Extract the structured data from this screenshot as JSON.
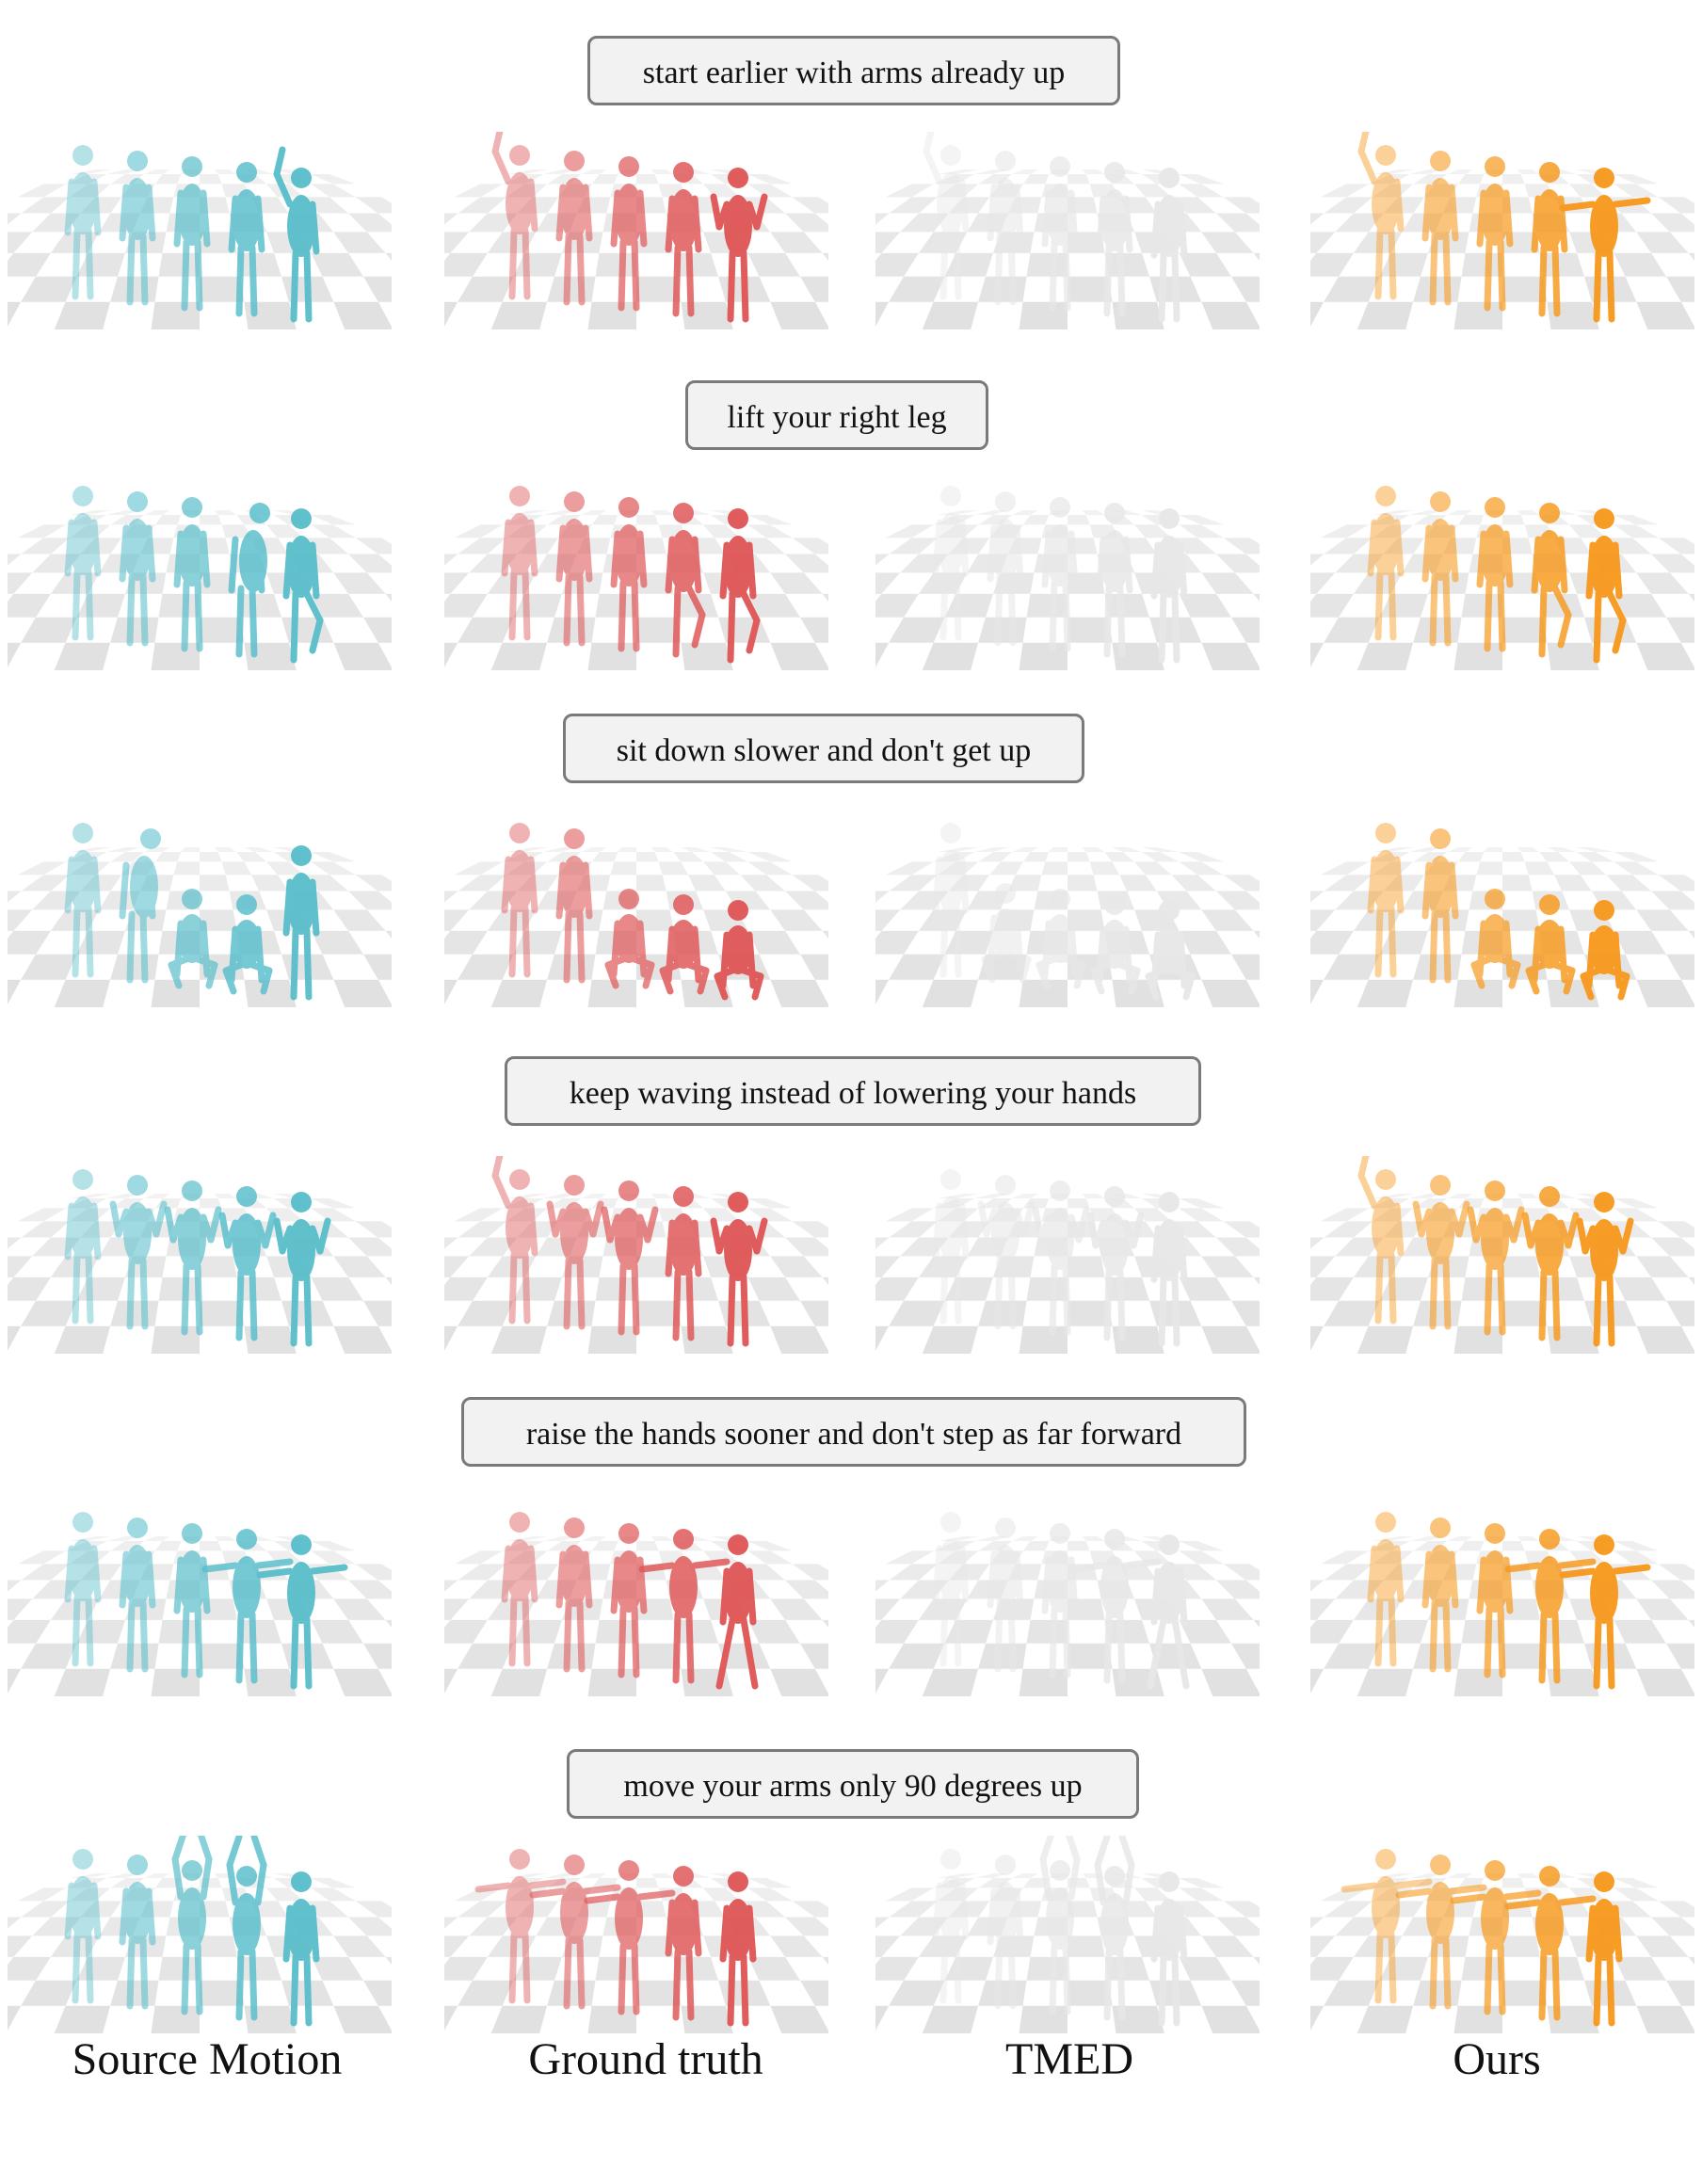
{
  "prompts": [
    "start earlier with arms already up",
    "lift your right leg",
    "sit down slower and don't get up",
    "keep waving instead of lowering your hands",
    "raise the hands sooner and don't step as far forward",
    "move your arms only 90 degrees up"
  ],
  "captions": [
    "Source Motion",
    "Ground truth",
    "TMED",
    "Ours"
  ],
  "method_colors": [
    "#5bbfcc",
    "#e05858",
    "#e8e8e8",
    "#f79a20"
  ],
  "figure_poses": [
    [
      [
        "stand",
        "stand",
        "stand",
        "stand",
        "armup"
      ],
      [
        "armup",
        "stand",
        "stand",
        "stand",
        "wave"
      ],
      [
        "armup",
        "stand",
        "stand",
        "stand",
        "stand"
      ],
      [
        "armup",
        "stand",
        "stand",
        "stand",
        "armsout"
      ]
    ],
    [
      [
        "stand",
        "stand",
        "stand",
        "lean",
        "leg"
      ],
      [
        "stand",
        "stand",
        "stand",
        "leg",
        "leg"
      ],
      [
        "stand",
        "stand",
        "stand",
        "stand",
        "stand"
      ],
      [
        "stand",
        "stand",
        "stand",
        "leg",
        "leg"
      ]
    ],
    [
      [
        "stand",
        "lean",
        "sit",
        "sit",
        "stand"
      ],
      [
        "stand",
        "stand",
        "sit",
        "sit",
        "sit"
      ],
      [
        "stand",
        "sit",
        "sit",
        "sit",
        "sit"
      ],
      [
        "stand",
        "stand",
        "sit",
        "sit",
        "sit"
      ]
    ],
    [
      [
        "stand",
        "wave",
        "wave",
        "wave",
        "wave"
      ],
      [
        "armup",
        "wave",
        "wave",
        "stand",
        "wave"
      ],
      [
        "stand",
        "wave",
        "wave",
        "wave",
        "stand"
      ],
      [
        "armup",
        "wave",
        "wave",
        "wave",
        "wave"
      ]
    ],
    [
      [
        "stand",
        "stand",
        "stand",
        "armsout",
        "armsout"
      ],
      [
        "stand",
        "stand",
        "stand",
        "armsout",
        "step"
      ],
      [
        "stand",
        "stand",
        "stand",
        "armsout",
        "step"
      ],
      [
        "stand",
        "stand",
        "stand",
        "armsout",
        "armsout"
      ]
    ],
    [
      [
        "stand",
        "stand",
        "armsup",
        "armsup",
        "stand"
      ],
      [
        "armsout",
        "armsout",
        "armsout",
        "stand",
        "stand"
      ],
      [
        "stand",
        "stand",
        "armsup",
        "armsup",
        "stand"
      ],
      [
        "armsout",
        "armsout",
        "armsout",
        "armsout",
        "stand"
      ]
    ]
  ]
}
